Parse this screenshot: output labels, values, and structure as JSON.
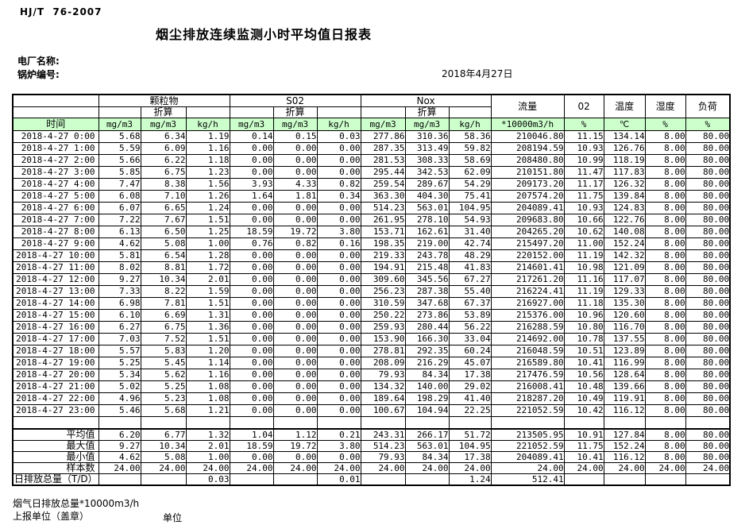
{
  "header": {
    "standard": "HJ/T  76-2007",
    "title": "烟尘排放连续监测小时平均值日报表",
    "plant_name_label": "电厂名称:",
    "boiler_no_label": "锅炉编号:",
    "report_date": "2018年4月27日"
  },
  "table": {
    "time_header": "时间",
    "groups": {
      "pm": {
        "label": "颗粒物",
        "sub": "折算"
      },
      "so2": {
        "label": "S02",
        "sub": "折算"
      },
      "nox": {
        "label": "Nox",
        "sub": "折算"
      },
      "flow": "流量",
      "o2": "02",
      "temp": "温度",
      "humidity": "湿度",
      "load": "负荷"
    },
    "units": [
      "mg/m3",
      "mg/m3",
      "kg/h",
      "mg/m3",
      "mg/m3",
      "kg/h",
      "mg/m3",
      "mg/m3",
      "kg/h",
      "*10000m3/h",
      "%",
      "℃",
      "%",
      "%"
    ],
    "rows": [
      {
        "time": "2018-4-27 0:00",
        "values": [
          "5.68",
          "6.34",
          "1.19",
          "0.14",
          "0.15",
          "0.03",
          "277.86",
          "310.36",
          "58.36",
          "210046.80",
          "11.15",
          "134.14",
          "8.00",
          "80.00"
        ]
      },
      {
        "time": "2018-4-27 1:00",
        "values": [
          "5.59",
          "6.09",
          "1.16",
          "0.00",
          "0.00",
          "0.00",
          "287.35",
          "313.49",
          "59.82",
          "208194.59",
          "10.93",
          "126.76",
          "8.00",
          "80.00"
        ]
      },
      {
        "time": "2018-4-27 2:00",
        "values": [
          "5.66",
          "6.22",
          "1.18",
          "0.00",
          "0.00",
          "0.00",
          "281.53",
          "308.33",
          "58.69",
          "208480.80",
          "10.99",
          "118.19",
          "8.00",
          "80.00"
        ]
      },
      {
        "time": "2018-4-27 3:00",
        "values": [
          "5.85",
          "6.75",
          "1.23",
          "0.00",
          "0.00",
          "0.00",
          "295.44",
          "342.53",
          "62.09",
          "210151.80",
          "11.47",
          "117.83",
          "8.00",
          "80.00"
        ]
      },
      {
        "time": "2018-4-27 4:00",
        "values": [
          "7.47",
          "8.38",
          "1.56",
          "3.93",
          "4.33",
          "0.82",
          "259.54",
          "289.67",
          "54.29",
          "209173.20",
          "11.17",
          "126.32",
          "8.00",
          "80.00"
        ]
      },
      {
        "time": "2018-4-27 5:00",
        "values": [
          "6.08",
          "7.10",
          "1.26",
          "1.64",
          "1.81",
          "0.34",
          "363.30",
          "404.30",
          "75.41",
          "207574.20",
          "11.75",
          "139.84",
          "8.00",
          "80.00"
        ]
      },
      {
        "time": "2018-4-27 6:00",
        "values": [
          "6.07",
          "6.65",
          "1.24",
          "0.00",
          "0.00",
          "0.00",
          "514.23",
          "563.01",
          "104.95",
          "204089.41",
          "10.93",
          "124.83",
          "8.00",
          "80.00"
        ]
      },
      {
        "time": "2018-4-27 7:00",
        "values": [
          "7.22",
          "7.67",
          "1.51",
          "0.00",
          "0.00",
          "0.00",
          "261.95",
          "278.10",
          "54.93",
          "209683.80",
          "10.66",
          "122.76",
          "8.00",
          "80.00"
        ]
      },
      {
        "time": "2018-4-27 8:00",
        "values": [
          "6.13",
          "6.50",
          "1.25",
          "18.59",
          "19.72",
          "3.80",
          "153.71",
          "162.61",
          "31.40",
          "204265.20",
          "10.62",
          "140.08",
          "8.00",
          "80.00"
        ]
      },
      {
        "time": "2018-4-27 9:00",
        "values": [
          "4.62",
          "5.08",
          "1.00",
          "0.76",
          "0.82",
          "0.16",
          "198.35",
          "219.00",
          "42.74",
          "215497.20",
          "11.00",
          "152.24",
          "8.00",
          "80.00"
        ]
      },
      {
        "time": "2018-4-27 10:00",
        "values": [
          "5.81",
          "6.54",
          "1.28",
          "0.00",
          "0.00",
          "0.00",
          "219.33",
          "243.78",
          "48.29",
          "220152.00",
          "11.19",
          "142.32",
          "8.00",
          "80.00"
        ]
      },
      {
        "time": "2018-4-27 11:00",
        "values": [
          "8.02",
          "8.81",
          "1.72",
          "0.00",
          "0.00",
          "0.00",
          "194.91",
          "215.48",
          "41.83",
          "214601.41",
          "10.98",
          "121.09",
          "8.00",
          "80.00"
        ]
      },
      {
        "time": "2018-4-27 12:00",
        "values": [
          "9.27",
          "10.34",
          "2.01",
          "0.00",
          "0.00",
          "0.00",
          "309.60",
          "345.56",
          "67.27",
          "217261.20",
          "11.16",
          "117.07",
          "8.00",
          "80.00"
        ]
      },
      {
        "time": "2018-4-27 13:00",
        "values": [
          "7.33",
          "8.22",
          "1.59",
          "0.00",
          "0.00",
          "0.00",
          "256.23",
          "287.38",
          "55.40",
          "216224.41",
          "11.19",
          "129.33",
          "8.00",
          "80.00"
        ]
      },
      {
        "time": "2018-4-27 14:00",
        "values": [
          "6.98",
          "7.81",
          "1.51",
          "0.00",
          "0.00",
          "0.00",
          "310.59",
          "347.68",
          "67.37",
          "216927.00",
          "11.18",
          "135.30",
          "8.00",
          "80.00"
        ]
      },
      {
        "time": "2018-4-27 15:00",
        "values": [
          "6.10",
          "6.69",
          "1.31",
          "0.00",
          "0.00",
          "0.00",
          "250.22",
          "273.86",
          "53.89",
          "215376.00",
          "10.96",
          "120.60",
          "8.00",
          "80.00"
        ]
      },
      {
        "time": "2018-4-27 16:00",
        "values": [
          "6.27",
          "6.75",
          "1.36",
          "0.00",
          "0.00",
          "0.00",
          "259.93",
          "280.44",
          "56.22",
          "216288.59",
          "10.80",
          "116.70",
          "8.00",
          "80.00"
        ]
      },
      {
        "time": "2018-4-27 17:00",
        "values": [
          "7.03",
          "7.52",
          "1.51",
          "0.00",
          "0.00",
          "0.00",
          "153.90",
          "166.30",
          "33.04",
          "214692.00",
          "10.78",
          "137.55",
          "8.00",
          "80.00"
        ]
      },
      {
        "time": "2018-4-27 18:00",
        "values": [
          "5.57",
          "5.83",
          "1.20",
          "0.00",
          "0.00",
          "0.00",
          "278.81",
          "292.35",
          "60.24",
          "216048.59",
          "10.51",
          "123.89",
          "8.00",
          "80.00"
        ]
      },
      {
        "time": "2018-4-27 19:00",
        "values": [
          "5.25",
          "5.45",
          "1.14",
          "0.00",
          "0.00",
          "0.00",
          "208.09",
          "216.29",
          "45.07",
          "216589.80",
          "10.41",
          "116.99",
          "8.00",
          "80.00"
        ]
      },
      {
        "time": "2018-4-27 20:00",
        "values": [
          "5.34",
          "5.62",
          "1.16",
          "0.00",
          "0.00",
          "0.00",
          "79.93",
          "84.34",
          "17.38",
          "217476.59",
          "10.56",
          "128.64",
          "8.00",
          "80.00"
        ]
      },
      {
        "time": "2018-4-27 21:00",
        "values": [
          "5.02",
          "5.25",
          "1.08",
          "0.00",
          "0.00",
          "0.00",
          "134.32",
          "140.00",
          "29.02",
          "216008.41",
          "10.48",
          "139.66",
          "8.00",
          "80.00"
        ]
      },
      {
        "time": "2018-4-27 22:00",
        "values": [
          "4.96",
          "5.23",
          "1.08",
          "0.00",
          "0.00",
          "0.00",
          "189.64",
          "198.29",
          "41.40",
          "218287.20",
          "10.49",
          "119.91",
          "8.00",
          "80.00"
        ]
      },
      {
        "time": "2018-4-27 23:00",
        "values": [
          "5.46",
          "5.68",
          "1.21",
          "0.00",
          "0.00",
          "0.00",
          "100.67",
          "104.94",
          "22.25",
          "221052.59",
          "10.42",
          "116.12",
          "8.00",
          "80.00"
        ]
      }
    ],
    "summary_rows": [
      {
        "label": "平均值",
        "values": [
          "6.20",
          "6.77",
          "1.32",
          "1.04",
          "1.12",
          "0.21",
          "243.31",
          "266.17",
          "51.72",
          "213505.95",
          "10.91",
          "127.84",
          "8.00",
          "80.00"
        ]
      },
      {
        "label": "最大值",
        "values": [
          "9.27",
          "10.34",
          "2.01",
          "18.59",
          "19.72",
          "3.80",
          "514.23",
          "563.01",
          "104.95",
          "221052.59",
          "11.75",
          "152.24",
          "8.00",
          "80.00"
        ]
      },
      {
        "label": "最小值",
        "values": [
          "4.62",
          "5.08",
          "1.00",
          "0.00",
          "0.00",
          "0.00",
          "79.93",
          "84.34",
          "17.38",
          "204089.41",
          "10.41",
          "116.12",
          "8.00",
          "80.00"
        ]
      },
      {
        "label": "样本数",
        "values": [
          "24.00",
          "24.00",
          "24.00",
          "24.00",
          "24.00",
          "24.00",
          "24.00",
          "24.00",
          "24.00",
          "24.00",
          "24.00",
          "24.00",
          "24.00",
          "24.00"
        ]
      }
    ],
    "total_row": {
      "label": "日排放总量（T/D）",
      "values": [
        "",
        "",
        "0.03",
        "",
        "",
        "0.01",
        "",
        "",
        "1.24",
        "512.41",
        "",
        "",
        "",
        ""
      ]
    }
  },
  "footer": {
    "flue_gas_total_label": "烟气日排放总量*10000m3/h",
    "report_unit_label": "上报单位（盖章）",
    "unit_label": "单位"
  },
  "colors": {
    "header_green": "#ccffcc",
    "border": "#000000"
  }
}
